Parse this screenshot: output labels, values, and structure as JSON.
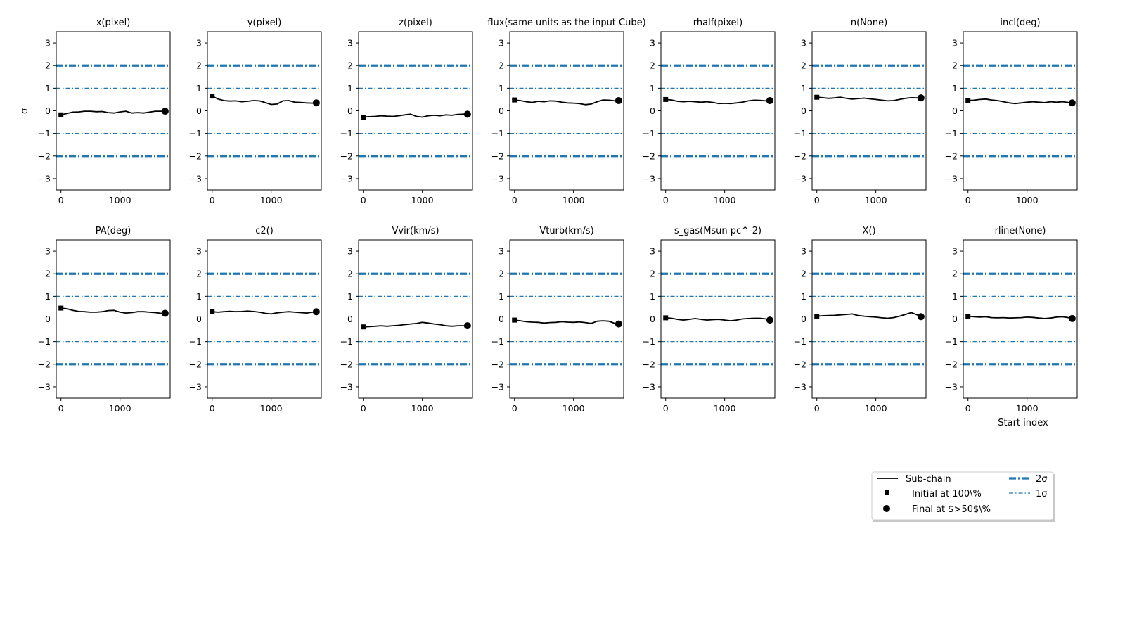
{
  "figure": {
    "ylabel": "σ",
    "xlabel": "Start index"
  },
  "legend": {
    "position": "lower-right",
    "entries": [
      {
        "label": "Sub-chain",
        "style": "line",
        "color": "#000000"
      },
      {
        "label": "Initial at 100\\%",
        "style": "square",
        "color": "#000000"
      },
      {
        "label": "Final at $>50$\\%",
        "style": "circle",
        "color": "#000000"
      },
      {
        "label": "2σ",
        "style": "thick-dashdot",
        "color": "#1f77b4"
      },
      {
        "label": "1σ",
        "style": "thin-dashdot",
        "color": "#1f77b4"
      }
    ]
  },
  "colors": {
    "chain": "#000000",
    "sigma": "#1f77b4"
  },
  "chart_data": {
    "type": "line",
    "layout": {
      "rows": 2,
      "cols": 7
    },
    "ylim": [
      -3.5,
      3.5
    ],
    "xlim": [
      -80,
      1850
    ],
    "yticks": [
      -3,
      -2,
      -1,
      0,
      1,
      2,
      3
    ],
    "xticks": [
      0,
      1000
    ],
    "reference_lines": [
      {
        "y": 2,
        "label": "2σ"
      },
      {
        "y": -2,
        "label": "2σ"
      },
      {
        "y": 1,
        "label": "1σ"
      },
      {
        "y": -1,
        "label": "1σ"
      }
    ],
    "x": [
      0,
      100,
      200,
      300,
      400,
      500,
      600,
      700,
      800,
      900,
      1000,
      1100,
      1200,
      1300,
      1400,
      1500,
      1600,
      1700,
      1765
    ],
    "panels": [
      {
        "title": "x(pixel)",
        "values": [
          -0.18,
          -0.12,
          -0.06,
          -0.05,
          -0.02,
          -0.02,
          -0.04,
          -0.03,
          -0.08,
          -0.1,
          -0.05,
          -0.02,
          -0.1,
          -0.08,
          -0.1,
          -0.06,
          -0.02,
          -0.02,
          -0.02
        ]
      },
      {
        "title": "y(pixel)",
        "values": [
          0.65,
          0.52,
          0.45,
          0.43,
          0.44,
          0.4,
          0.42,
          0.45,
          0.44,
          0.36,
          0.28,
          0.3,
          0.44,
          0.45,
          0.38,
          0.37,
          0.35,
          0.34,
          0.35
        ]
      },
      {
        "title": "z(pixel)",
        "values": [
          -0.28,
          -0.26,
          -0.25,
          -0.22,
          -0.24,
          -0.25,
          -0.22,
          -0.18,
          -0.15,
          -0.25,
          -0.28,
          -0.22,
          -0.2,
          -0.22,
          -0.18,
          -0.2,
          -0.16,
          -0.15,
          -0.15
        ]
      },
      {
        "title": "flux(same units as the input Cube)",
        "values": [
          0.48,
          0.45,
          0.4,
          0.37,
          0.42,
          0.4,
          0.44,
          0.43,
          0.38,
          0.35,
          0.34,
          0.32,
          0.27,
          0.3,
          0.4,
          0.48,
          0.47,
          0.44,
          0.45
        ]
      },
      {
        "title": "rhalf(pixel)",
        "values": [
          0.5,
          0.48,
          0.42,
          0.4,
          0.42,
          0.4,
          0.38,
          0.4,
          0.37,
          0.32,
          0.33,
          0.32,
          0.35,
          0.38,
          0.44,
          0.47,
          0.46,
          0.44,
          0.45
        ]
      },
      {
        "title": "n(None)",
        "values": [
          0.6,
          0.58,
          0.55,
          0.57,
          0.6,
          0.55,
          0.52,
          0.54,
          0.56,
          0.53,
          0.5,
          0.47,
          0.44,
          0.45,
          0.5,
          0.55,
          0.58,
          0.57,
          0.57
        ]
      },
      {
        "title": "incl(deg)",
        "values": [
          0.45,
          0.47,
          0.5,
          0.52,
          0.48,
          0.45,
          0.4,
          0.35,
          0.32,
          0.35,
          0.38,
          0.4,
          0.38,
          0.36,
          0.4,
          0.38,
          0.4,
          0.37,
          0.35
        ]
      },
      {
        "title": "PA(deg)",
        "values": [
          0.48,
          0.45,
          0.38,
          0.33,
          0.32,
          0.3,
          0.3,
          0.32,
          0.37,
          0.38,
          0.3,
          0.26,
          0.28,
          0.32,
          0.32,
          0.3,
          0.28,
          0.25,
          0.25
        ]
      },
      {
        "title": "c2()",
        "values": [
          0.32,
          0.3,
          0.32,
          0.34,
          0.32,
          0.33,
          0.35,
          0.33,
          0.3,
          0.25,
          0.22,
          0.27,
          0.3,
          0.32,
          0.3,
          0.28,
          0.26,
          0.3,
          0.32
        ]
      },
      {
        "title": "Vvir(km/s)",
        "values": [
          -0.35,
          -0.34,
          -0.32,
          -0.3,
          -0.32,
          -0.3,
          -0.28,
          -0.25,
          -0.22,
          -0.2,
          -0.15,
          -0.18,
          -0.22,
          -0.25,
          -0.3,
          -0.32,
          -0.3,
          -0.3,
          -0.3
        ]
      },
      {
        "title": "Vturb(km/s)",
        "values": [
          -0.05,
          -0.08,
          -0.12,
          -0.14,
          -0.15,
          -0.18,
          -0.16,
          -0.15,
          -0.12,
          -0.14,
          -0.15,
          -0.13,
          -0.16,
          -0.2,
          -0.1,
          -0.08,
          -0.1,
          -0.2,
          -0.22
        ]
      },
      {
        "title": "s_gas(Msun pc^-2)",
        "values": [
          0.05,
          0.03,
          -0.02,
          -0.05,
          -0.02,
          0.02,
          -0.02,
          -0.05,
          -0.03,
          -0.02,
          -0.05,
          -0.08,
          -0.05,
          0.0,
          0.02,
          0.03,
          0.03,
          0.0,
          -0.05
        ]
      },
      {
        "title": "X()",
        "values": [
          0.12,
          0.14,
          0.15,
          0.16,
          0.18,
          0.2,
          0.22,
          0.15,
          0.12,
          0.1,
          0.08,
          0.05,
          0.03,
          0.06,
          0.12,
          0.2,
          0.28,
          0.18,
          0.1
        ]
      },
      {
        "title": "rline(None)",
        "values": [
          0.12,
          0.1,
          0.08,
          0.1,
          0.06,
          0.05,
          0.06,
          0.04,
          0.05,
          0.06,
          0.08,
          0.07,
          0.04,
          0.02,
          0.04,
          0.08,
          0.1,
          0.06,
          0.02
        ]
      }
    ]
  }
}
